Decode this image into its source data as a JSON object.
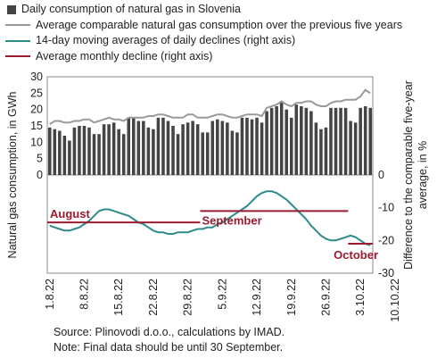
{
  "chart_data": {
    "type": "bar",
    "legend": [
      {
        "label": "Daily consumption of natural gas in Slovenia",
        "kind": "bar",
        "color": "#444444"
      },
      {
        "label": "Average comparable natural gas consumption over the previous five years",
        "kind": "line",
        "color": "#999999"
      },
      {
        "label": "14-day moving averages of daily declines (right axis)",
        "kind": "line",
        "color": "#2e8b8b"
      },
      {
        "label": "Average monthly decline (right axis)",
        "kind": "line",
        "color": "#9b1b30"
      }
    ],
    "y_left": {
      "label": "Natural gas consumption, in GWh",
      "range": [
        0,
        30
      ],
      "ticks": [
        0,
        5,
        10,
        15,
        20,
        25,
        30
      ]
    },
    "y_right": {
      "label": "Difference to the comparable five-year average, in %",
      "range": [
        -30,
        30
      ],
      "ticks": [
        -30,
        -20,
        -10,
        0,
        10,
        20,
        30
      ],
      "tick_labels": [
        "-30",
        "-20",
        "-10",
        "0",
        "",
        "",
        ""
      ]
    },
    "x_tick_labels": [
      "1.8.22",
      "8.8.22",
      "15.8.22",
      "22.8.22",
      "29.8.22",
      "5.9.22",
      "12.9.22",
      "19.9.22",
      "26.9.22",
      "3.10.22",
      "10.10.22"
    ],
    "daily_consumption": [
      14.5,
      14.0,
      13.5,
      12.0,
      10.5,
      14.5,
      15.0,
      15.0,
      14.5,
      12.5,
      12.5,
      15.5,
      15.5,
      16.0,
      14.0,
      12.5,
      17.5,
      17.5,
      16.5,
      16.5,
      14.5,
      14.0,
      17.5,
      17.5,
      16.5,
      15.0,
      12.5,
      15.5,
      16.0,
      16.5,
      15.5,
      13.0,
      13.0,
      16.5,
      17.0,
      16.5,
      16.0,
      13.5,
      13.0,
      17.5,
      17.5,
      17.0,
      17.5,
      16.0,
      19.5,
      20.5,
      21.0,
      22.5,
      20.0,
      17.5,
      21.5,
      21.0,
      20.5,
      19.5,
      16.0,
      14.0,
      14.5,
      20.5,
      20.5,
      20.5,
      20.5,
      16.5,
      16.0,
      20.5,
      21.0,
      20.5
    ],
    "five_year_average": [
      15.5,
      16.5,
      16.5,
      16.0,
      16.0,
      16.5,
      16.5,
      17.0,
      17.0,
      16.0,
      16.5,
      17.0,
      17.5,
      17.0,
      17.0,
      16.5,
      17.5,
      17.5,
      17.5,
      17.5,
      18.0,
      18.0,
      18.5,
      18.5,
      18.0,
      17.5,
      17.5,
      17.5,
      18.5,
      18.5,
      17.5,
      17.5,
      17.5,
      18.0,
      18.5,
      18.5,
      18.0,
      17.5,
      17.5,
      18.0,
      18.5,
      18.5,
      18.5,
      18.0,
      20.5,
      21.0,
      21.5,
      22.5,
      21.5,
      21.0,
      22.0,
      22.0,
      22.5,
      22.5,
      21.5,
      21.0,
      21.0,
      22.0,
      22.5,
      22.5,
      23.0,
      23.0,
      23.0,
      24.0,
      26.0,
      25.0
    ],
    "moving_average_decline": [
      -15.5,
      -16.0,
      -16.5,
      -17.0,
      -17.0,
      -16.5,
      -16.0,
      -15.0,
      -14.0,
      -12.5,
      -11.0,
      -10.5,
      -10.5,
      -11.0,
      -11.5,
      -12.0,
      -12.5,
      -13.5,
      -14.5,
      -15.0,
      -16.0,
      -17.0,
      -17.5,
      -17.5,
      -18.0,
      -18.0,
      -17.5,
      -17.5,
      -17.5,
      -17.0,
      -16.5,
      -16.5,
      -16.0,
      -16.0,
      -15.0,
      -14.5,
      -13.5,
      -12.5,
      -11.5,
      -10.5,
      -9.5,
      -8.0,
      -6.5,
      -5.5,
      -5.0,
      -5.0,
      -5.5,
      -6.5,
      -7.5,
      -9.0,
      -10.5,
      -12.0,
      -13.5,
      -15.5,
      -17.0,
      -18.5,
      -19.5,
      -20.0,
      -20.0,
      -19.5,
      -19.0,
      -18.5,
      -19.0,
      -20.0,
      -21.0,
      -21.5
    ],
    "monthly_averages": [
      {
        "label": "August",
        "value": -14.5,
        "from": 0,
        "to": 30
      },
      {
        "label": "September",
        "value": -11.0,
        "from": 31,
        "to": 60
      },
      {
        "label": "October",
        "value": -21.0,
        "from": 61,
        "to": 65
      }
    ],
    "notes": {
      "source": "Source: Plinovodi d.o.o., calculations by IMAD.",
      "note": "Note: Final data should be until 30 September."
    }
  }
}
